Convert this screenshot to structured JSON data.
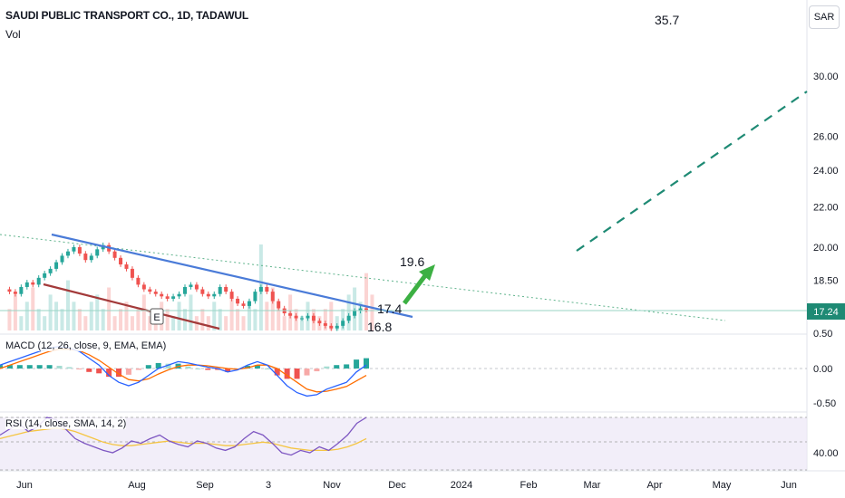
{
  "header": {
    "title": "SAUDI PUBLIC TRANSPORT CO., 1D, TADAWUL",
    "volume_label": "Vol",
    "currency_button": "SAR",
    "target_top_label": "35.7"
  },
  "chart_data": {
    "type": "line",
    "symbol": "SAUDI PUBLIC TRANSPORT CO.",
    "interval": "1D",
    "exchange": "TADAWUL",
    "currency": "SAR",
    "last_price": "17.24",
    "x_tick_labels": [
      "Jun",
      "Aug",
      "Sep",
      "3",
      "Nov",
      "Dec",
      "2024",
      "Feb",
      "Mar",
      "Apr",
      "May",
      "Jun"
    ],
    "price_axis": {
      "scale": "log",
      "tick_labels": [
        "30.00",
        "26.00",
        "24.00",
        "22.00",
        "20.00",
        "18.50"
      ],
      "tick_values": [
        30,
        26,
        24,
        22,
        20,
        18.5
      ]
    },
    "price_series": [
      18.1,
      18.0,
      17.9,
      18.2,
      18.4,
      18.3,
      18.6,
      18.8,
      19.0,
      19.3,
      19.6,
      19.8,
      20.0,
      19.7,
      19.4,
      19.6,
      19.9,
      20.1,
      19.8,
      19.5,
      19.2,
      19.0,
      18.6,
      18.3,
      18.1,
      18.0,
      17.9,
      17.8,
      17.7,
      17.8,
      17.9,
      18.2,
      18.3,
      18.1,
      17.9,
      17.8,
      17.9,
      18.2,
      18.0,
      17.7,
      17.5,
      17.4,
      17.6,
      18.0,
      18.2,
      18.0,
      17.6,
      17.3,
      17.1,
      17.0,
      16.9,
      16.9,
      17.0,
      16.8,
      16.7,
      16.6,
      16.5,
      16.6,
      16.8,
      17.0,
      17.2,
      17.3,
      17.24
    ],
    "volume_series": [
      3,
      5,
      2,
      4,
      6,
      3,
      2,
      5,
      4,
      3,
      7,
      4,
      3,
      2,
      4,
      5,
      3,
      6,
      2,
      3,
      4,
      2,
      3,
      5,
      2,
      3,
      4,
      3,
      2,
      4,
      3,
      5,
      2,
      3,
      2,
      4,
      3,
      2,
      5,
      3,
      2,
      4,
      3,
      12,
      4,
      6,
      3,
      2,
      5,
      3,
      2,
      4,
      3,
      2,
      3,
      4,
      2,
      3,
      5,
      6,
      4,
      8,
      5
    ],
    "annotations": [
      {
        "text": "19.6",
        "kind": "target"
      },
      {
        "text": "17.4",
        "kind": "resistance"
      },
      {
        "text": "16.8",
        "kind": "support"
      },
      {
        "text": "35.7",
        "kind": "long-term-target"
      },
      {
        "text": "E",
        "kind": "earnings-marker"
      }
    ],
    "trendlines": {
      "upper_channel": {
        "from": 20.8,
        "to": 17.3,
        "color": "#4a7bd8"
      },
      "lower_channel": {
        "from": 18.6,
        "to": 16.6,
        "color": "#a33a3a"
      },
      "long_resistance": {
        "from": 20.3,
        "to": 17.1,
        "color": "#5fb38c",
        "style": "dotted"
      },
      "projection": {
        "from": 19.9,
        "to": 29.0,
        "color": "#1e8a74",
        "style": "dashed"
      }
    },
    "macd": {
      "label": "MACD (12, 26, close, 9, EMA, EMA)",
      "tick_labels": [
        "0.50",
        "0.00",
        "-0.50"
      ],
      "tick_values": [
        0.5,
        0.0,
        -0.5
      ],
      "macd_line": [
        0.05,
        0.1,
        0.15,
        0.2,
        0.25,
        0.3,
        0.32,
        0.3,
        0.25,
        0.15,
        0.05,
        -0.1,
        -0.2,
        -0.25,
        -0.2,
        -0.1,
        0.0,
        0.05,
        0.1,
        0.08,
        0.05,
        0.02,
        0.0,
        -0.05,
        -0.02,
        0.05,
        0.1,
        0.05,
        -0.1,
        -0.25,
        -0.35,
        -0.4,
        -0.38,
        -0.3,
        -0.25,
        -0.2,
        -0.05,
        0.05
      ],
      "signal_line": [
        0.0,
        0.05,
        0.1,
        0.15,
        0.2,
        0.25,
        0.28,
        0.28,
        0.26,
        0.2,
        0.12,
        0.02,
        -0.08,
        -0.16,
        -0.18,
        -0.15,
        -0.08,
        -0.02,
        0.03,
        0.05,
        0.05,
        0.04,
        0.02,
        0.0,
        -0.01,
        0.01,
        0.05,
        0.05,
        0.0,
        -0.1,
        -0.2,
        -0.3,
        -0.34,
        -0.33,
        -0.3,
        -0.26,
        -0.18,
        -0.1
      ],
      "histogram": [
        0.05,
        0.05,
        0.05,
        0.05,
        0.05,
        0.05,
        0.04,
        0.02,
        -0.01,
        -0.05,
        -0.07,
        -0.12,
        -0.12,
        -0.09,
        -0.02,
        0.05,
        0.08,
        0.07,
        0.07,
        0.03,
        0.0,
        -0.02,
        -0.02,
        -0.05,
        -0.01,
        0.04,
        0.05,
        0.0,
        -0.1,
        -0.15,
        -0.15,
        -0.1,
        -0.04,
        0.03,
        0.05,
        0.06,
        0.13,
        0.15
      ]
    },
    "rsi": {
      "label": "RSI (14, close, SMA, 14, 2)",
      "tick_labels": [
        "40.00"
      ],
      "tick_values": [
        40
      ],
      "rsi_line": [
        55,
        60,
        65,
        58,
        62,
        70,
        68,
        60,
        52,
        48,
        45,
        42,
        40,
        44,
        50,
        48,
        52,
        55,
        50,
        47,
        45,
        50,
        48,
        44,
        42,
        45,
        52,
        58,
        55,
        48,
        40,
        38,
        42,
        40,
        45,
        42,
        48,
        55,
        65,
        70
      ],
      "rsi_ma": [
        52,
        54,
        56,
        58,
        59,
        60,
        61,
        60,
        58,
        55,
        52,
        49,
        47,
        46,
        46,
        47,
        48,
        49,
        50,
        49,
        48,
        48,
        48,
        47,
        46,
        46,
        47,
        48,
        49,
        48,
        46,
        44,
        43,
        42,
        42,
        42,
        43,
        45,
        48,
        52
      ]
    },
    "colors": {
      "up": "#26a69a",
      "down": "#ef5350",
      "macd_line": "#2962ff",
      "signal_line": "#ff6d00",
      "rsi_line": "#7e57c2",
      "rsi_ma": "#f5c542",
      "last_price_bg": "#1e8a74",
      "target_arrow": "#3cb043"
    }
  }
}
